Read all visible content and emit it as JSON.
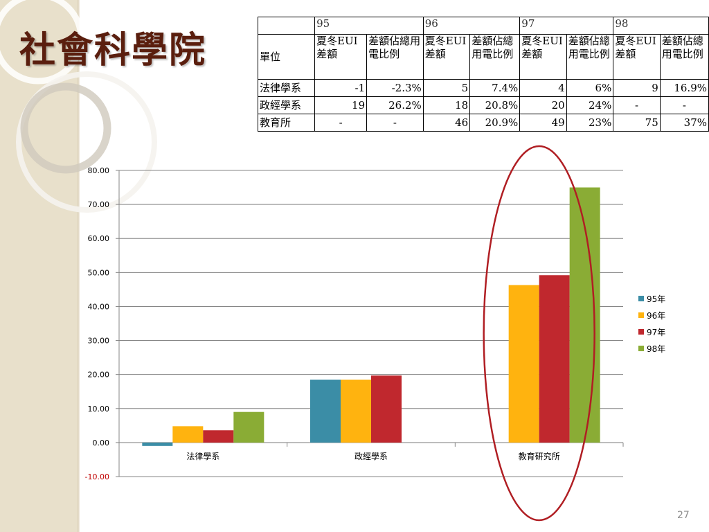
{
  "slide": {
    "title": "社會科學院",
    "page_number": "27"
  },
  "table": {
    "unit_header": "單位",
    "years": [
      "95",
      "96",
      "97",
      "98"
    ],
    "sub_headers": [
      "夏冬EUI差額",
      "差額佔總用電比例"
    ],
    "rows": [
      {
        "unit": "法律學系",
        "cells": [
          "-1",
          "-2.3%",
          "5",
          "7.4%",
          "4",
          "6%",
          "9",
          "16.9%"
        ]
      },
      {
        "unit": "政經學系",
        "cells": [
          "19",
          "26.2%",
          "18",
          "20.8%",
          "20",
          "24%",
          "-",
          "-"
        ]
      },
      {
        "unit": "教育所",
        "cells": [
          "-",
          "-",
          "46",
          "20.9%",
          "49",
          "23%",
          "75",
          "37%"
        ]
      }
    ]
  },
  "chart_data": {
    "type": "bar",
    "categories": [
      "法律學系",
      "政經學系",
      "教育研究所"
    ],
    "series": [
      {
        "name": "95年",
        "color": "#3b8da6",
        "values": [
          -1,
          18.5,
          null
        ]
      },
      {
        "name": "96年",
        "color": "#ffb30f",
        "values": [
          4.8,
          18.5,
          46.3
        ]
      },
      {
        "name": "97年",
        "color": "#c0282e",
        "values": [
          3.6,
          19.7,
          49.2
        ]
      },
      {
        "name": "98年",
        "color": "#8aac35",
        "values": [
          9,
          null,
          75
        ]
      }
    ],
    "ylim": [
      -10,
      80
    ],
    "yticks": [
      "80.00",
      "70.00",
      "60.00",
      "50.00",
      "40.00",
      "30.00",
      "20.00",
      "10.00",
      "0.00",
      "-10.00"
    ],
    "negative_tick_color": "#c00000",
    "grid": true,
    "legend_position": "right",
    "highlight": {
      "category": "教育研究所",
      "shape": "ellipse",
      "color": "#b01e23"
    }
  }
}
